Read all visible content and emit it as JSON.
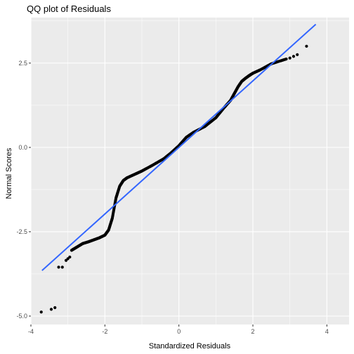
{
  "chart_data": {
    "type": "scatter",
    "title": "QQ plot of Residuals",
    "xlabel": "Standardized Residuals",
    "ylabel": "Normal Scores",
    "xlim": [
      -4.0,
      4.6
    ],
    "ylim": [
      -5.25,
      3.85
    ],
    "x_ticks": [
      -4,
      -2,
      0,
      2,
      4
    ],
    "x_tick_labels": [
      "-4",
      "-2",
      "0",
      "2",
      "4"
    ],
    "y_ticks": [
      -5.0,
      -2.5,
      0.0,
      2.5
    ],
    "y_tick_labels": [
      "-5.0",
      "-2.5",
      "0.0",
      "2.5"
    ],
    "grid": true,
    "colors": {
      "panel": "#ebebeb",
      "grid_major": "#ffffff",
      "points": "#000000",
      "line": "#3366ff"
    },
    "reference_line": {
      "x": [
        -3.7,
        3.7
      ],
      "y": [
        -3.65,
        3.65
      ]
    },
    "tail_points": {
      "x": [
        -3.72,
        -3.45,
        -3.35,
        -3.25,
        -3.15,
        -3.05,
        -3.0,
        -2.95,
        2.9,
        3.0,
        3.1,
        3.2,
        3.45
      ],
      "y": [
        -4.88,
        -4.8,
        -4.75,
        -3.55,
        -3.55,
        -3.35,
        -3.3,
        -3.25,
        2.62,
        2.65,
        2.7,
        2.75,
        3.0
      ]
    },
    "body_curve": {
      "x": [
        -2.9,
        -2.75,
        -2.6,
        -2.45,
        -2.3,
        -2.15,
        -2.0,
        -1.9,
        -1.8,
        -1.7,
        -1.6,
        -1.5,
        -1.4,
        -1.2,
        -1.0,
        -0.7,
        -0.4,
        -0.2,
        0.0,
        0.2,
        0.4,
        0.7,
        1.0,
        1.2,
        1.4,
        1.5,
        1.6,
        1.7,
        1.8,
        1.9,
        2.0,
        2.2,
        2.5,
        2.9
      ],
      "y": [
        -3.05,
        -2.95,
        -2.85,
        -2.8,
        -2.74,
        -2.68,
        -2.6,
        -2.45,
        -2.1,
        -1.5,
        -1.15,
        -0.98,
        -0.9,
        -0.8,
        -0.7,
        -0.52,
        -0.33,
        -0.15,
        0.05,
        0.3,
        0.45,
        0.62,
        0.88,
        1.15,
        1.4,
        1.6,
        1.8,
        1.96,
        2.05,
        2.13,
        2.2,
        2.3,
        2.48,
        2.62
      ]
    }
  }
}
